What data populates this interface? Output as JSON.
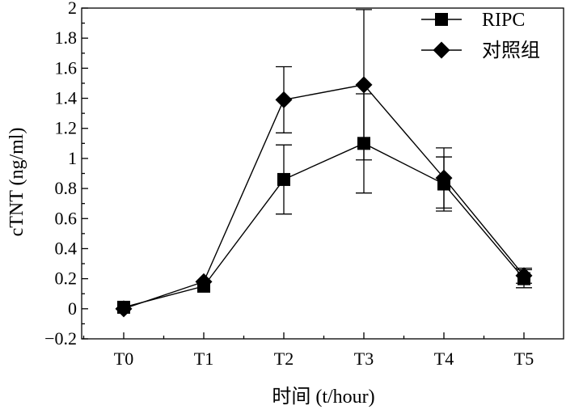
{
  "chart_data": {
    "type": "line",
    "categories": [
      "T0",
      "T1",
      "T2",
      "T3",
      "T4",
      "T5"
    ],
    "series": [
      {
        "name": "RIPC",
        "marker": "square",
        "values": [
          0.01,
          0.15,
          0.86,
          1.1,
          0.83,
          0.2
        ],
        "error": [
          0.0,
          0.0,
          0.23,
          0.33,
          0.18,
          0.06
        ]
      },
      {
        "name": "对照组",
        "marker": "diamond",
        "values": [
          0.0,
          0.18,
          1.39,
          1.49,
          0.87,
          0.22
        ],
        "error": [
          0.0,
          0.0,
          0.22,
          0.5,
          0.2,
          0.05
        ]
      }
    ],
    "xlabel": "时间 (t/hour)",
    "ylabel": "cTNT (ng/ml)",
    "ylim": [
      -0.2,
      2.0
    ],
    "yticks": [
      -0.2,
      0,
      0.2,
      0.4,
      0.6,
      0.8,
      1,
      1.2,
      1.4,
      1.6,
      1.8,
      2
    ],
    "ytick_labels": [
      "−0.2",
      "0",
      "0.2",
      "0.4",
      "0.6",
      "0.8",
      "1",
      "1.2",
      "1.4",
      "1.6",
      "1.8",
      "2"
    ],
    "legend_position": "top-right",
    "grid": false,
    "color": "#000000"
  }
}
